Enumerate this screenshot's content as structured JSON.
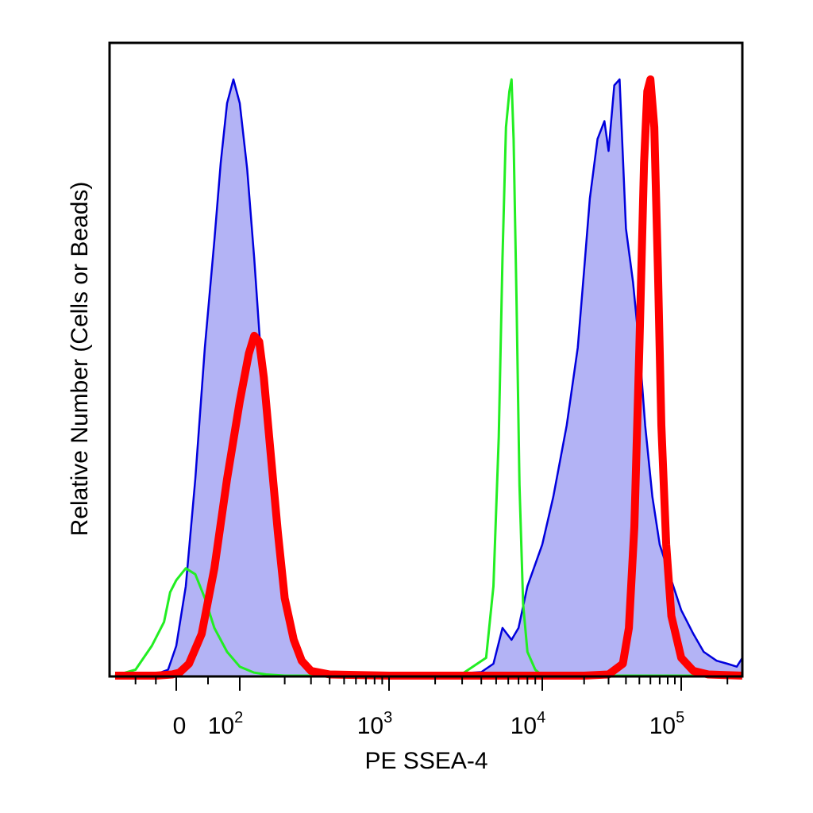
{
  "chart_data": {
    "type": "area",
    "xlabel": "PE SSEA-4",
    "ylabel": "Relative Number (Cells or Beads)",
    "x_scale": "biexponential",
    "xlim": [
      -150,
      250000
    ],
    "ylim": [
      0,
      1
    ],
    "x_ticks": [
      {
        "value": 0,
        "base": "0",
        "exp": ""
      },
      {
        "value": 100,
        "base": "10",
        "exp": "2"
      },
      {
        "value": 1000,
        "base": "10",
        "exp": "3"
      },
      {
        "value": 10000,
        "base": "10",
        "exp": "4"
      },
      {
        "value": 100000,
        "base": "10",
        "exp": "5"
      }
    ],
    "colors": {
      "filled_fill": "#b3b3f5",
      "filled_line": "#0000dd",
      "beads": "#22ee22",
      "cells": "#ff0000"
    },
    "series": [
      {
        "style": "filled",
        "x": [
          -150,
          -60,
          -20,
          0,
          15,
          30,
          45,
          60,
          70,
          80,
          90,
          100,
          112,
          125,
          140,
          160,
          180,
          200,
          230,
          260,
          300,
          400,
          600,
          1000,
          2000,
          3000,
          4000,
          4800,
          5500,
          6300,
          7000,
          8000,
          10000,
          12000,
          15000,
          18000,
          20000,
          22000,
          25000,
          28000,
          30000,
          33000,
          36000,
          40000,
          45000,
          50000,
          55000,
          62000,
          70000,
          85000,
          100000,
          120000,
          140000,
          170000,
          200000,
          230000,
          250000
        ],
        "y": [
          0,
          0,
          0.01,
          0.05,
          0.15,
          0.33,
          0.55,
          0.73,
          0.86,
          0.96,
          1.0,
          0.96,
          0.85,
          0.7,
          0.52,
          0.33,
          0.2,
          0.11,
          0.06,
          0.03,
          0.012,
          0.004,
          0.002,
          0.002,
          0.003,
          0.004,
          0.006,
          0.02,
          0.08,
          0.06,
          0.08,
          0.15,
          0.22,
          0.3,
          0.42,
          0.55,
          0.68,
          0.8,
          0.9,
          0.93,
          0.88,
          0.99,
          1.0,
          0.75,
          0.66,
          0.55,
          0.42,
          0.3,
          0.22,
          0.16,
          0.11,
          0.07,
          0.04,
          0.025,
          0.02,
          0.015,
          0.03
        ]
      },
      {
        "style": "line",
        "name": "",
        "x": [
          -150,
          -100,
          -60,
          -30,
          -15,
          0,
          15,
          30,
          45,
          60,
          80,
          100,
          125,
          150,
          200,
          1000,
          3000,
          4300,
          4800,
          5200,
          5500,
          5800,
          6100,
          6300,
          6500,
          6800,
          7100,
          7500,
          8000,
          9000,
          10000,
          30000,
          100000,
          250000
        ],
        "y": [
          0,
          0.01,
          0.05,
          0.09,
          0.14,
          0.16,
          0.18,
          0.17,
          0.13,
          0.08,
          0.04,
          0.015,
          0.005,
          0.002,
          0,
          0,
          0.003,
          0.03,
          0.15,
          0.4,
          0.7,
          0.92,
          0.98,
          1.0,
          0.9,
          0.62,
          0.32,
          0.12,
          0.04,
          0.01,
          0,
          0,
          0,
          0
        ]
      },
      {
        "style": "thick-line",
        "name": "",
        "x": [
          -150,
          -50,
          -10,
          5,
          20,
          40,
          60,
          80,
          100,
          115,
          125,
          135,
          145,
          160,
          180,
          200,
          230,
          260,
          300,
          400,
          1000,
          5000,
          10000,
          20000,
          30000,
          38000,
          42000,
          46000,
          50000,
          54000,
          57000,
          60000,
          64000,
          68000,
          72000,
          78000,
          85000,
          100000,
          120000,
          150000,
          250000
        ],
        "y": [
          0,
          0,
          0.002,
          0.005,
          0.02,
          0.07,
          0.18,
          0.33,
          0.46,
          0.54,
          0.57,
          0.56,
          0.5,
          0.38,
          0.24,
          0.13,
          0.06,
          0.025,
          0.008,
          0.002,
          0,
          0,
          0,
          0,
          0.002,
          0.02,
          0.08,
          0.25,
          0.55,
          0.86,
          0.98,
          1.0,
          0.92,
          0.68,
          0.42,
          0.22,
          0.1,
          0.03,
          0.008,
          0.002,
          0
        ]
      }
    ]
  }
}
